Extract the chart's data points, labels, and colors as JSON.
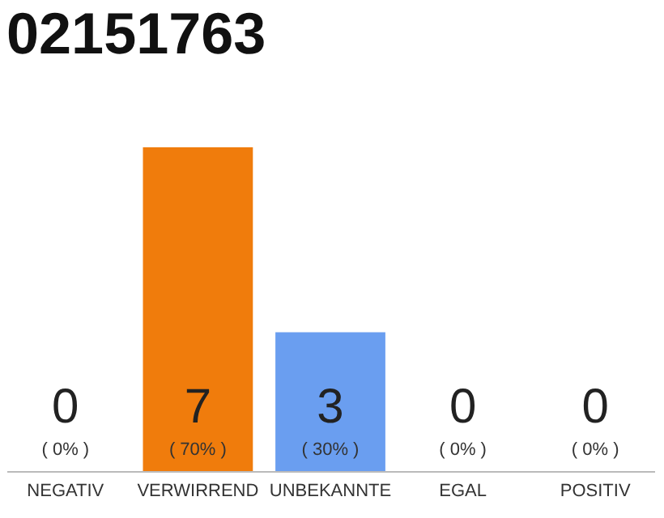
{
  "chart_data": {
    "type": "bar",
    "title": "02151763",
    "categories": [
      "NEGATIV",
      "VERWIRREND",
      "UNBEKANNTE",
      "EGAL",
      "POSITIV"
    ],
    "values": [
      0,
      7,
      3,
      0,
      0
    ],
    "colors": [
      "#eeeeee",
      "#f07c0c",
      "#6a9ef0",
      "#eeeeee",
      "#eeeeee"
    ],
    "ylim": [
      0,
      7
    ],
    "tick_labels": "x",
    "grid": false,
    "data_labels": true,
    "annotations": [
      {
        "text": "( 0% )",
        "x": "NEGATIV",
        "y": 0
      },
      {
        "text": "( 70% )",
        "x": "VERWIRREND",
        "y": 0
      },
      {
        "text": "( 30% )",
        "x": "UNBEKANNTE",
        "y": 0
      },
      {
        "text": "( 0% )",
        "x": "EGAL",
        "y": 0
      },
      {
        "text": "( 0% )",
        "x": "POSITIV",
        "y": 0
      }
    ]
  }
}
